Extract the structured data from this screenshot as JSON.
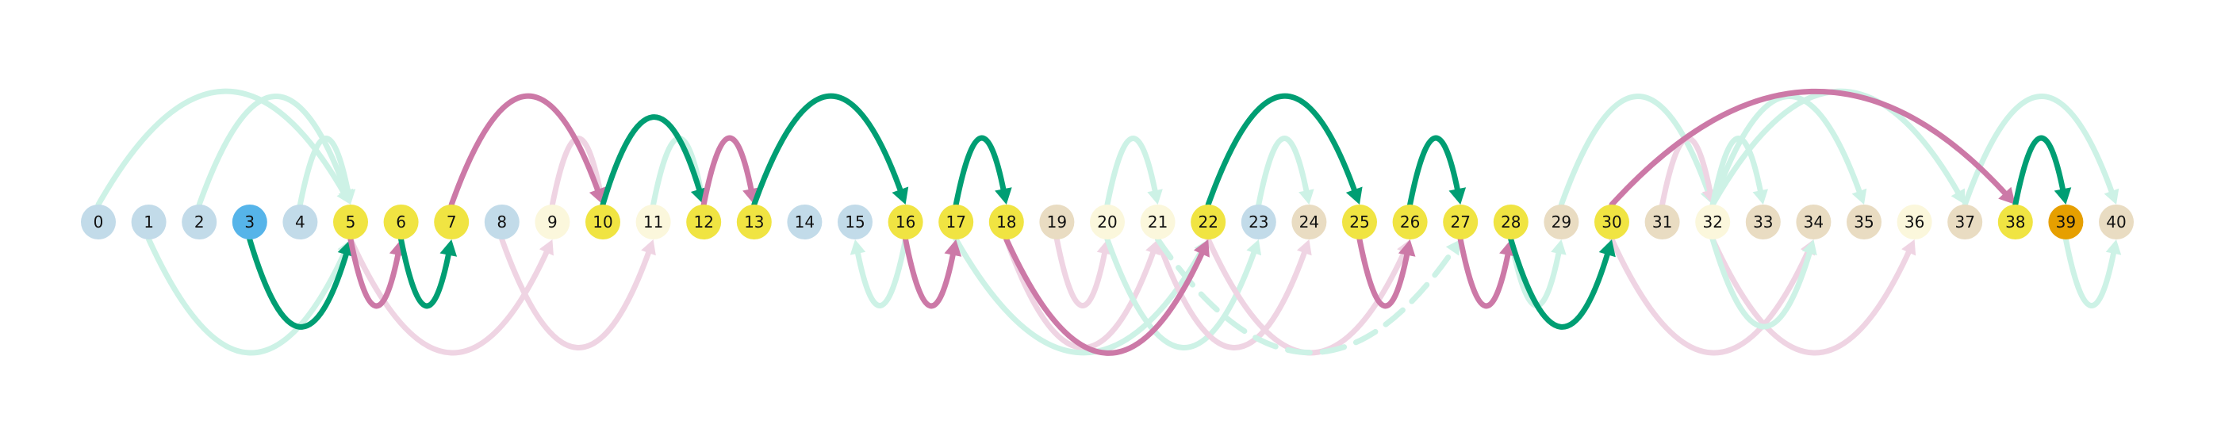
{
  "diagram": {
    "nodes": [
      {
        "id": "0",
        "label": "0",
        "group": "blue"
      },
      {
        "id": "1",
        "label": "1",
        "group": "blue"
      },
      {
        "id": "2",
        "label": "2",
        "group": "blue"
      },
      {
        "id": "3",
        "label": "3",
        "group": "blue-strong"
      },
      {
        "id": "4",
        "label": "4",
        "group": "blue"
      },
      {
        "id": "5",
        "label": "5",
        "group": "yellow"
      },
      {
        "id": "6",
        "label": "6",
        "group": "yellow"
      },
      {
        "id": "7",
        "label": "7",
        "group": "yellow"
      },
      {
        "id": "8",
        "label": "8",
        "group": "blue"
      },
      {
        "id": "9",
        "label": "9",
        "group": "cream"
      },
      {
        "id": "10",
        "label": "10",
        "group": "yellow"
      },
      {
        "id": "11",
        "label": "11",
        "group": "cream"
      },
      {
        "id": "12",
        "label": "12",
        "group": "yellow"
      },
      {
        "id": "13",
        "label": "13",
        "group": "yellow"
      },
      {
        "id": "14",
        "label": "14",
        "group": "blue"
      },
      {
        "id": "15",
        "label": "15",
        "group": "blue"
      },
      {
        "id": "16",
        "label": "16",
        "group": "yellow"
      },
      {
        "id": "17",
        "label": "17",
        "group": "yellow"
      },
      {
        "id": "18",
        "label": "18",
        "group": "yellow"
      },
      {
        "id": "19",
        "label": "19",
        "group": "tan"
      },
      {
        "id": "20",
        "label": "20",
        "group": "cream"
      },
      {
        "id": "21",
        "label": "21",
        "group": "cream"
      },
      {
        "id": "22",
        "label": "22",
        "group": "yellow"
      },
      {
        "id": "23",
        "label": "23",
        "group": "blue"
      },
      {
        "id": "24",
        "label": "24",
        "group": "tan"
      },
      {
        "id": "25",
        "label": "25",
        "group": "yellow"
      },
      {
        "id": "26",
        "label": "26",
        "group": "yellow"
      },
      {
        "id": "27",
        "label": "27",
        "group": "yellow"
      },
      {
        "id": "28",
        "label": "28",
        "group": "yellow"
      },
      {
        "id": "29",
        "label": "29",
        "group": "tan"
      },
      {
        "id": "30",
        "label": "30",
        "group": "yellow"
      },
      {
        "id": "31",
        "label": "31",
        "group": "tan"
      },
      {
        "id": "32",
        "label": "32",
        "group": "cream"
      },
      {
        "id": "33",
        "label": "33",
        "group": "tan"
      },
      {
        "id": "34",
        "label": "34",
        "group": "tan"
      },
      {
        "id": "35",
        "label": "35",
        "group": "tan"
      },
      {
        "id": "36",
        "label": "36",
        "group": "cream"
      },
      {
        "id": "37",
        "label": "37",
        "group": "tan"
      },
      {
        "id": "38",
        "label": "38",
        "group": "yellow"
      },
      {
        "id": "39",
        "label": "39",
        "group": "orange"
      },
      {
        "id": "40",
        "label": "40",
        "group": "tan"
      }
    ],
    "colors": {
      "blue": "#c2dbe9",
      "blue-strong": "#56b4e9",
      "yellow": "#f0e442",
      "cream": "#fbf7dc",
      "tan": "#e9dcc2",
      "orange": "#e69f00",
      "edge-green": "#009e73",
      "edge-pink": "#cc79a7",
      "edge-green-faint": "#cdf2e6",
      "edge-pink-faint": "#efd4e3"
    },
    "edges": [
      {
        "from": "0",
        "to": "5",
        "side": "top",
        "style": "green-faint"
      },
      {
        "from": "2",
        "to": "5",
        "side": "top",
        "style": "green-faint"
      },
      {
        "from": "4",
        "to": "5",
        "side": "top",
        "style": "green-faint"
      },
      {
        "from": "1",
        "to": "5",
        "side": "bottom",
        "style": "green-faint"
      },
      {
        "from": "8",
        "to": "11",
        "side": "bottom",
        "style": "pink-faint"
      },
      {
        "from": "5",
        "to": "9",
        "side": "bottom",
        "style": "pink-faint"
      },
      {
        "from": "9",
        "to": "10",
        "side": "top",
        "style": "pink-faint"
      },
      {
        "from": "11",
        "to": "12",
        "side": "top",
        "style": "green-faint"
      },
      {
        "from": "16",
        "to": "15",
        "side": "bottom",
        "style": "green-faint"
      },
      {
        "from": "19",
        "to": "20",
        "side": "bottom",
        "style": "pink-faint"
      },
      {
        "from": "18",
        "to": "21",
        "side": "bottom",
        "style": "pink-faint"
      },
      {
        "from": "20",
        "to": "21",
        "side": "top",
        "style": "green-faint"
      },
      {
        "from": "17",
        "to": "22",
        "side": "bottom",
        "style": "green-faint"
      },
      {
        "from": "20",
        "to": "23",
        "side": "bottom",
        "style": "green-faint"
      },
      {
        "from": "21",
        "to": "24",
        "side": "bottom",
        "style": "pink-faint"
      },
      {
        "from": "23",
        "to": "24",
        "side": "top",
        "style": "green-faint"
      },
      {
        "from": "22",
        "to": "26",
        "side": "bottom",
        "style": "pink-faint"
      },
      {
        "from": "21",
        "to": "27",
        "side": "bottom",
        "style": "green-faint",
        "dashed": true
      },
      {
        "from": "28",
        "to": "29",
        "side": "bottom",
        "style": "green-faint"
      },
      {
        "from": "29",
        "to": "32",
        "side": "top",
        "style": "green-faint"
      },
      {
        "from": "31",
        "to": "32",
        "side": "top",
        "style": "pink-faint"
      },
      {
        "from": "32",
        "to": "33",
        "side": "top",
        "style": "green-faint"
      },
      {
        "from": "32",
        "to": "35",
        "side": "top",
        "style": "green-faint"
      },
      {
        "from": "32",
        "to": "37",
        "side": "top",
        "style": "green-faint"
      },
      {
        "from": "30",
        "to": "34",
        "side": "bottom",
        "style": "pink-faint"
      },
      {
        "from": "32",
        "to": "36",
        "side": "bottom",
        "style": "pink-faint"
      },
      {
        "from": "32",
        "to": "34",
        "side": "bottom",
        "style": "green-faint"
      },
      {
        "from": "37",
        "to": "40",
        "side": "top",
        "style": "green-faint"
      },
      {
        "from": "39",
        "to": "40",
        "side": "bottom",
        "style": "green-faint"
      },
      {
        "from": "3",
        "to": "5",
        "side": "bottom",
        "style": "green"
      },
      {
        "from": "5",
        "to": "6",
        "side": "bottom",
        "style": "pink"
      },
      {
        "from": "6",
        "to": "7",
        "side": "bottom",
        "style": "green"
      },
      {
        "from": "7",
        "to": "10",
        "side": "top",
        "style": "pink"
      },
      {
        "from": "10",
        "to": "12",
        "side": "top",
        "style": "green"
      },
      {
        "from": "12",
        "to": "13",
        "side": "top",
        "style": "pink"
      },
      {
        "from": "13",
        "to": "16",
        "side": "top",
        "style": "green"
      },
      {
        "from": "16",
        "to": "17",
        "side": "bottom",
        "style": "pink"
      },
      {
        "from": "17",
        "to": "18",
        "side": "top",
        "style": "green"
      },
      {
        "from": "18",
        "to": "22",
        "side": "bottom",
        "style": "pink"
      },
      {
        "from": "22",
        "to": "25",
        "side": "top",
        "style": "green"
      },
      {
        "from": "25",
        "to": "26",
        "side": "bottom",
        "style": "pink"
      },
      {
        "from": "26",
        "to": "27",
        "side": "top",
        "style": "green"
      },
      {
        "from": "27",
        "to": "28",
        "side": "bottom",
        "style": "pink"
      },
      {
        "from": "28",
        "to": "30",
        "side": "bottom",
        "style": "green"
      },
      {
        "from": "30",
        "to": "38",
        "side": "top",
        "style": "pink"
      },
      {
        "from": "38",
        "to": "39",
        "side": "top",
        "style": "green"
      }
    ]
  }
}
